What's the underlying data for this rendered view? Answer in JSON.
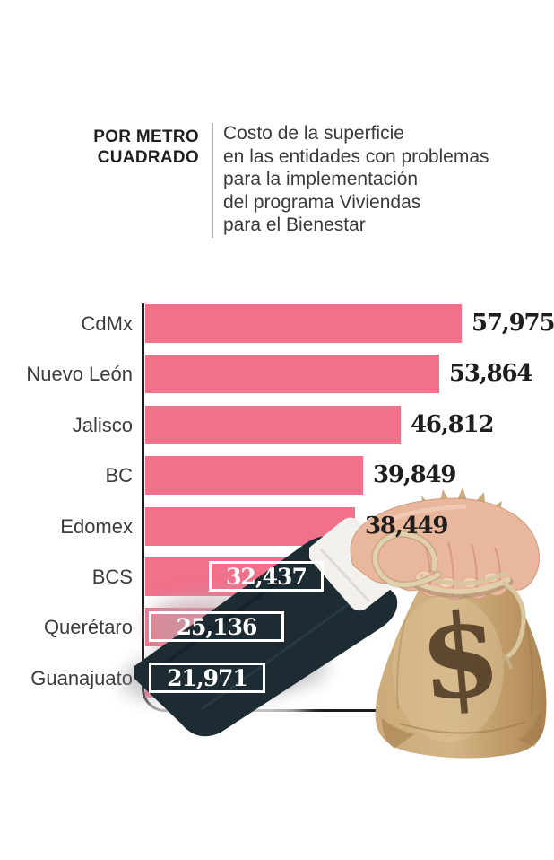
{
  "header": {
    "kicker_line1": "POR METRO",
    "kicker_line2": "CUADRADO",
    "description_lines": [
      "Costo de la superficie",
      "en las entidades con problemas",
      "para la implementación",
      "del programa Viviendas",
      "para el Bienestar"
    ]
  },
  "chart_data": {
    "type": "bar",
    "orientation": "horizontal",
    "kicker": "POR METRO CUADRADO",
    "title": "Costo de la superficie en las entidades con problemas para la implementación del programa Viviendas para el Bienestar",
    "categories": [
      "CdMx",
      "Nuevo León",
      "Jalisco",
      "BC",
      "Edomex",
      "BCS",
      "Querétaro",
      "Guanajuato"
    ],
    "values": [
      57975,
      53864,
      46812,
      39849,
      38449,
      32437,
      25136,
      21971
    ],
    "value_labels": [
      "57,975",
      "53,864",
      "46,812",
      "39,849",
      "38,449",
      "32,437",
      "25,136",
      "21,971"
    ],
    "boxed_values": [
      false,
      false,
      false,
      false,
      false,
      true,
      true,
      true
    ],
    "xlim": [
      0,
      60000
    ],
    "grid": false,
    "legend": "none",
    "bar_color": "#f1708a"
  },
  "illustration": {
    "description": "hand in dark suit with white cuff holding a burlap money bag tied with rope",
    "dollar_sign": "$"
  },
  "colors": {
    "bar": "#f1708a",
    "value_text": "#1f1d1d",
    "boxed_value_text": "#ffffff",
    "box_border": "#ffffff",
    "axis": "#1a1a1a",
    "kicker_text": "#1f1f1f",
    "description_text": "#3a3a3a",
    "divider": "#b5b5b5",
    "category_text": "#3c3c3c",
    "suit": "#1d2b33",
    "cuff": "#f3f1ee",
    "skin": "#e9b79c",
    "burlap": "#c9a473",
    "burlap_dark": "#a8814f",
    "burlap_light": "#d9c096",
    "rope": "#e0d1ab",
    "dollar": "#46301d"
  }
}
